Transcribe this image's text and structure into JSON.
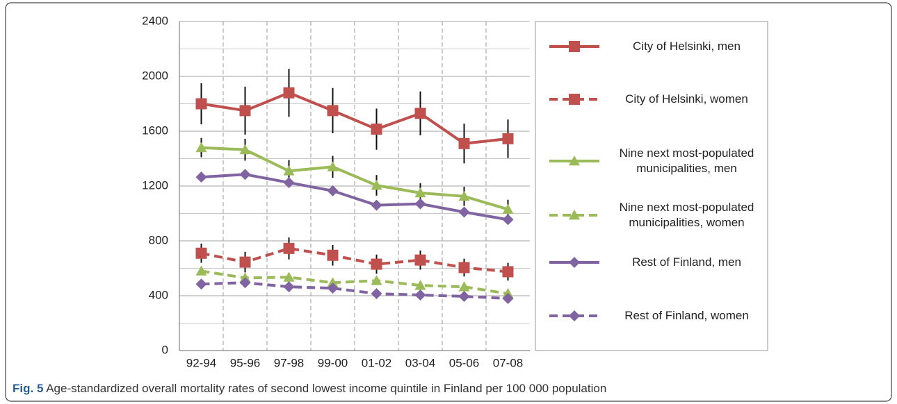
{
  "chart_data": {
    "type": "line",
    "categories": [
      "92-94",
      "95-96",
      "97-98",
      "99-00",
      "01-02",
      "03-04",
      "05-06",
      "07-08"
    ],
    "ylim": [
      0,
      2400
    ],
    "yticks": [
      0,
      400,
      800,
      1200,
      1600,
      2000,
      2400
    ],
    "y_minor_gridlines": [
      200,
      600,
      1000,
      1400,
      1800,
      2200
    ],
    "grid": true,
    "series": [
      {
        "name": "City of Helsinki, men",
        "color": "#c0504d",
        "marker": "square",
        "dashed": false,
        "values": [
          1800,
          1750,
          1880,
          1750,
          1615,
          1730,
          1510,
          1545
        ],
        "errors": [
          150,
          175,
          175,
          165,
          150,
          160,
          145,
          140
        ]
      },
      {
        "name": "City of Helsinki, women",
        "color": "#c0504d",
        "marker": "square",
        "dashed": true,
        "values": [
          710,
          645,
          745,
          695,
          630,
          660,
          605,
          575
        ],
        "errors": [
          70,
          75,
          80,
          75,
          70,
          70,
          65,
          65
        ]
      },
      {
        "name": "Nine next most-populated municipalities, men",
        "color": "#9bbb59",
        "marker": "triangle",
        "dashed": false,
        "values": [
          1480,
          1465,
          1310,
          1340,
          1205,
          1150,
          1125,
          1030
        ],
        "errors": [
          70,
          80,
          80,
          80,
          75,
          70,
          70,
          70
        ]
      },
      {
        "name": "Nine next most-populated municipalities, women",
        "color": "#9bbb59",
        "marker": "triangle",
        "dashed": true,
        "values": [
          580,
          530,
          535,
          495,
          510,
          475,
          465,
          415
        ]
      },
      {
        "name": "Rest of Finland, men",
        "color": "#8064a2",
        "marker": "diamond",
        "dashed": false,
        "values": [
          1265,
          1285,
          1225,
          1165,
          1060,
          1070,
          1010,
          955
        ]
      },
      {
        "name": "Rest of Finland, women",
        "color": "#8064a2",
        "marker": "diamond",
        "dashed": true,
        "values": [
          485,
          495,
          465,
          455,
          415,
          405,
          395,
          380
        ]
      }
    ],
    "caption": {
      "label": "Fig. 5",
      "text": "Age-standardized overall mortality rates of second lowest income quintile in Finland per 100 000 population"
    }
  }
}
